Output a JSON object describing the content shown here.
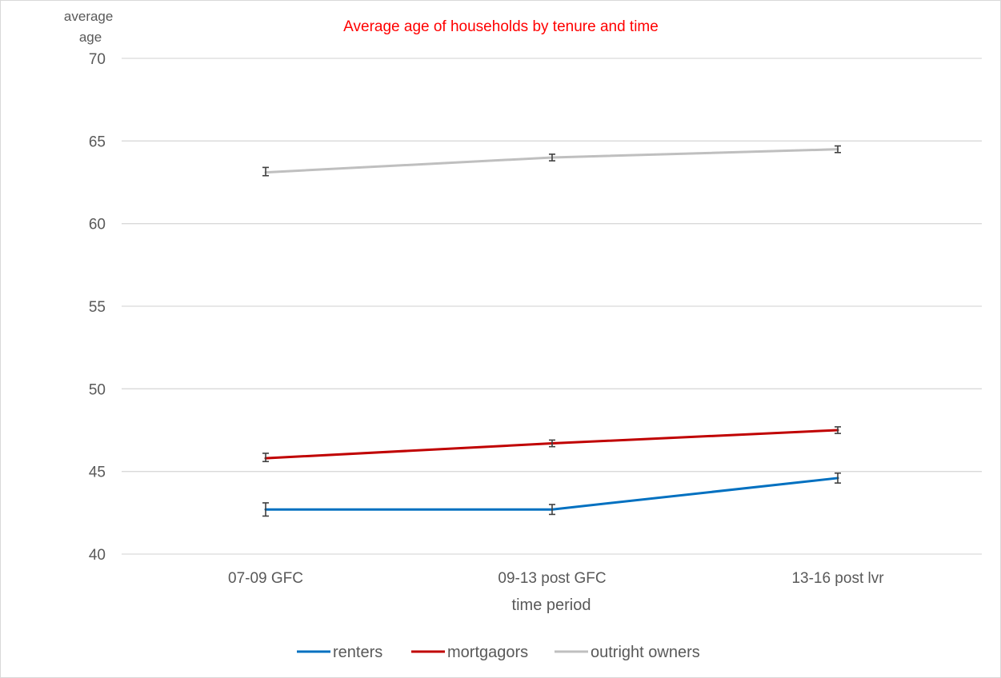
{
  "chart_data": {
    "type": "line",
    "title": "Average age of households by tenure and time",
    "ylabel": "average age",
    "ylabel_lines": [
      "average",
      "age"
    ],
    "xlabel": "time period",
    "categories": [
      "07-09 GFC",
      "09-13 post GFC",
      "13-16 post lvr"
    ],
    "yticks": [
      40,
      45,
      50,
      55,
      60,
      65,
      70
    ],
    "ylim": [
      40,
      70
    ],
    "grid": true,
    "legend_position": "bottom",
    "error_bars": true,
    "series": [
      {
        "name": "renters",
        "color": "#0070c0",
        "values": [
          42.7,
          42.7,
          44.6
        ],
        "error_low": [
          42.3,
          42.4,
          44.3
        ],
        "error_high": [
          43.1,
          43.0,
          44.9
        ]
      },
      {
        "name": "mortgagors",
        "color": "#c00000",
        "values": [
          45.8,
          46.7,
          47.5
        ],
        "error_low": [
          45.6,
          46.5,
          47.3
        ],
        "error_high": [
          46.1,
          46.9,
          47.7
        ]
      },
      {
        "name": "outright owners",
        "color": "#bfbfbf",
        "values": [
          63.1,
          64.0,
          64.5
        ],
        "error_low": [
          62.9,
          63.8,
          64.3
        ],
        "error_high": [
          63.4,
          64.2,
          64.7
        ]
      }
    ],
    "colors": {
      "title": "#ff0000",
      "gridline": "#d9d9d9",
      "text": "#595959",
      "error_bar": "#404040"
    }
  }
}
